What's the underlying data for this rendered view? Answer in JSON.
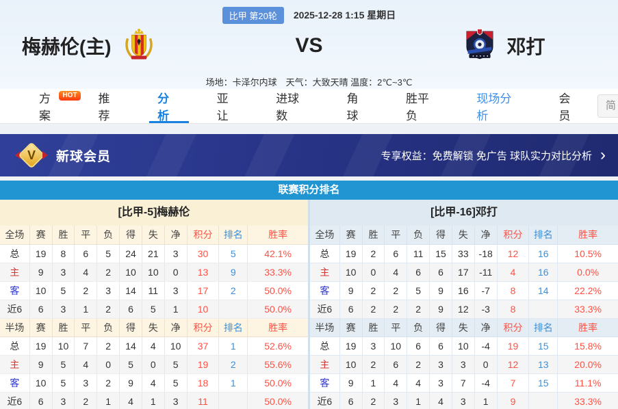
{
  "match_header": {
    "league_badge": "比甲 第20轮",
    "datetime": "2025-12-28 1:15 星期日",
    "home_team": "梅赫伦(主)",
    "vs_label": "VS",
    "away_team": "邓打",
    "venue_info": "场地：卡泽尔内球　天气：大致天晴 温度：2℃~3℃"
  },
  "nav": {
    "hot_badge": "HOT",
    "tabs": [
      {
        "label": "方案",
        "state": "normal"
      },
      {
        "label": "推荐",
        "state": "normal"
      },
      {
        "label": "分析",
        "state": "active"
      },
      {
        "label": "亚让",
        "state": "normal"
      },
      {
        "label": "进球数",
        "state": "normal"
      },
      {
        "label": "角球",
        "state": "normal"
      },
      {
        "label": "胜平负",
        "state": "normal"
      },
      {
        "label": "现场分析",
        "state": "highlight"
      },
      {
        "label": "会员",
        "state": "normal"
      }
    ],
    "lang_toggle": "简"
  },
  "vip_banner": {
    "title": "新球会员",
    "benefits": "专享权益：免费解锁 免广告 球队实力对比分析",
    "chevron": "›"
  },
  "standings": {
    "section_title": "联赛积分排名",
    "home": {
      "team_header": "[比甲-5]梅赫伦",
      "full": {
        "header": [
          "全场",
          "赛",
          "胜",
          "平",
          "负",
          "得",
          "失",
          "净",
          "积分",
          "排名",
          "胜率"
        ],
        "rows": [
          [
            "总",
            "19",
            "8",
            "6",
            "5",
            "24",
            "21",
            "3",
            "30",
            "5",
            "42.1%"
          ],
          [
            "主",
            "9",
            "3",
            "4",
            "2",
            "10",
            "10",
            "0",
            "13",
            "9",
            "33.3%"
          ],
          [
            "客",
            "10",
            "5",
            "2",
            "3",
            "14",
            "11",
            "3",
            "17",
            "2",
            "50.0%"
          ],
          [
            "近6",
            "6",
            "3",
            "1",
            "2",
            "6",
            "5",
            "1",
            "10",
            "",
            "50.0%"
          ]
        ]
      },
      "half": {
        "header": [
          "半场",
          "赛",
          "胜",
          "平",
          "负",
          "得",
          "失",
          "净",
          "积分",
          "排名",
          "胜率"
        ],
        "rows": [
          [
            "总",
            "19",
            "10",
            "7",
            "2",
            "14",
            "4",
            "10",
            "37",
            "1",
            "52.6%"
          ],
          [
            "主",
            "9",
            "5",
            "4",
            "0",
            "5",
            "0",
            "5",
            "19",
            "2",
            "55.6%"
          ],
          [
            "客",
            "10",
            "5",
            "3",
            "2",
            "9",
            "4",
            "5",
            "18",
            "1",
            "50.0%"
          ],
          [
            "近6",
            "6",
            "3",
            "2",
            "1",
            "4",
            "1",
            "3",
            "11",
            "",
            "50.0%"
          ]
        ]
      }
    },
    "away": {
      "team_header": "[比甲-16]邓打",
      "full": {
        "header": [
          "全场",
          "赛",
          "胜",
          "平",
          "负",
          "得",
          "失",
          "净",
          "积分",
          "排名",
          "胜率"
        ],
        "rows": [
          [
            "总",
            "19",
            "2",
            "6",
            "11",
            "15",
            "33",
            "-18",
            "12",
            "16",
            "10.5%"
          ],
          [
            "主",
            "10",
            "0",
            "4",
            "6",
            "6",
            "17",
            "-11",
            "4",
            "16",
            "0.0%"
          ],
          [
            "客",
            "9",
            "2",
            "2",
            "5",
            "9",
            "16",
            "-7",
            "8",
            "14",
            "22.2%"
          ],
          [
            "近6",
            "6",
            "2",
            "2",
            "2",
            "9",
            "12",
            "-3",
            "8",
            "",
            "33.3%"
          ]
        ]
      },
      "half": {
        "header": [
          "半场",
          "赛",
          "胜",
          "平",
          "负",
          "得",
          "失",
          "净",
          "积分",
          "排名",
          "胜率"
        ],
        "rows": [
          [
            "总",
            "19",
            "3",
            "10",
            "6",
            "6",
            "10",
            "-4",
            "19",
            "15",
            "15.8%"
          ],
          [
            "主",
            "10",
            "2",
            "6",
            "2",
            "3",
            "3",
            "0",
            "12",
            "13",
            "20.0%"
          ],
          [
            "客",
            "9",
            "1",
            "4",
            "4",
            "3",
            "7",
            "-4",
            "7",
            "15",
            "11.1%"
          ],
          [
            "近6",
            "6",
            "2",
            "3",
            "1",
            "4",
            "3",
            "1",
            "9",
            "",
            "33.3%"
          ]
        ]
      }
    }
  },
  "colors": {
    "accent_blue": "#1681e0",
    "title_bar_blue": "#2095d2",
    "badge_blue": "#5b90da",
    "value_red": "#ff5043",
    "rank_blue": "#3d8fd8",
    "home_label_red": "#d5342e",
    "away_label_blue": "#2d35cf",
    "home_panel_beige": "#faf0d5",
    "away_panel_blue": "#dfe9f1",
    "banner_indigo": "#283487"
  }
}
